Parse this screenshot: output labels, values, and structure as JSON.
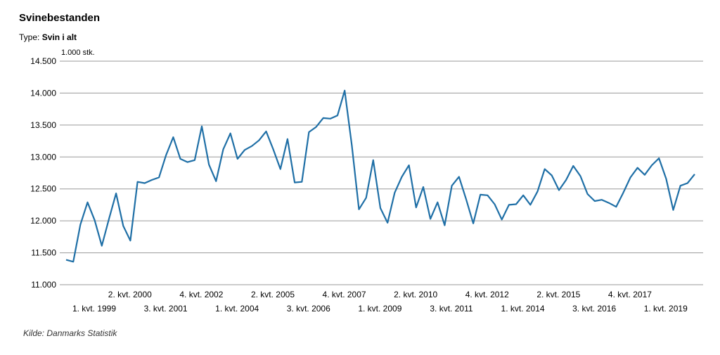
{
  "title": "Svinebestanden",
  "type_label": "Type:",
  "type_value": "Svin i alt",
  "source": "Kilde: Danmarks Statistik",
  "chart_data": {
    "type": "line",
    "unit_label": "1.000 stk.",
    "ylim": [
      11000,
      14500
    ],
    "yticks": [
      11000,
      11500,
      12000,
      12500,
      13000,
      13500,
      14000,
      14500
    ],
    "ytick_labels": [
      "11.000",
      "11.500",
      "12.000",
      "12.500",
      "13.000",
      "13.500",
      "14.000",
      "14.500"
    ],
    "grid": true,
    "line_color": "#1f6fa6",
    "xtick_labels_upper": [
      {
        "index": 5,
        "label": "2. kvt. 2000"
      },
      {
        "index": 15,
        "label": "4. kvt. 2002"
      },
      {
        "index": 25,
        "label": "2. kvt. 2005"
      },
      {
        "index": 35,
        "label": "4. kvt. 2007"
      },
      {
        "index": 45,
        "label": "2. kvt. 2010"
      },
      {
        "index": 55,
        "label": "4. kvt. 2012"
      },
      {
        "index": 65,
        "label": "2. kvt. 2015"
      },
      {
        "index": 75,
        "label": "4. kvt. 2017"
      }
    ],
    "xtick_labels_lower": [
      {
        "index": 0,
        "label": "1. kvt. 1999"
      },
      {
        "index": 10,
        "label": "3. kvt. 2001"
      },
      {
        "index": 20,
        "label": "1. kvt. 2004"
      },
      {
        "index": 30,
        "label": "3. kvt. 2006"
      },
      {
        "index": 40,
        "label": "1. kvt. 2009"
      },
      {
        "index": 50,
        "label": "3. kvt. 2011"
      },
      {
        "index": 60,
        "label": "1. kvt. 2014"
      },
      {
        "index": 70,
        "label": "3. kvt. 2016"
      },
      {
        "index": 80,
        "label": "1. kvt. 2019"
      }
    ],
    "values": [
      11390,
      11360,
      11940,
      12290,
      12010,
      11610,
      12030,
      12430,
      11920,
      11690,
      12610,
      12590,
      12640,
      12680,
      13030,
      13310,
      12970,
      12920,
      12950,
      13480,
      12880,
      12620,
      13120,
      13370,
      12970,
      13110,
      13170,
      13260,
      13400,
      13120,
      12810,
      13280,
      12600,
      12610,
      13390,
      13470,
      13610,
      13600,
      13650,
      14040,
      13180,
      12180,
      12360,
      12950,
      12200,
      11970,
      12440,
      12690,
      12870,
      12210,
      12530,
      12030,
      12290,
      11930,
      12550,
      12690,
      12340,
      11960,
      12410,
      12400,
      12260,
      12020,
      12250,
      12260,
      12400,
      12250,
      12460,
      12810,
      12710,
      12480,
      12640,
      12860,
      12700,
      12420,
      12310,
      12330,
      12280,
      12220,
      12440,
      12680,
      12830,
      12720,
      12870,
      12980,
      12660,
      12170,
      12550,
      12590,
      12730
    ]
  }
}
